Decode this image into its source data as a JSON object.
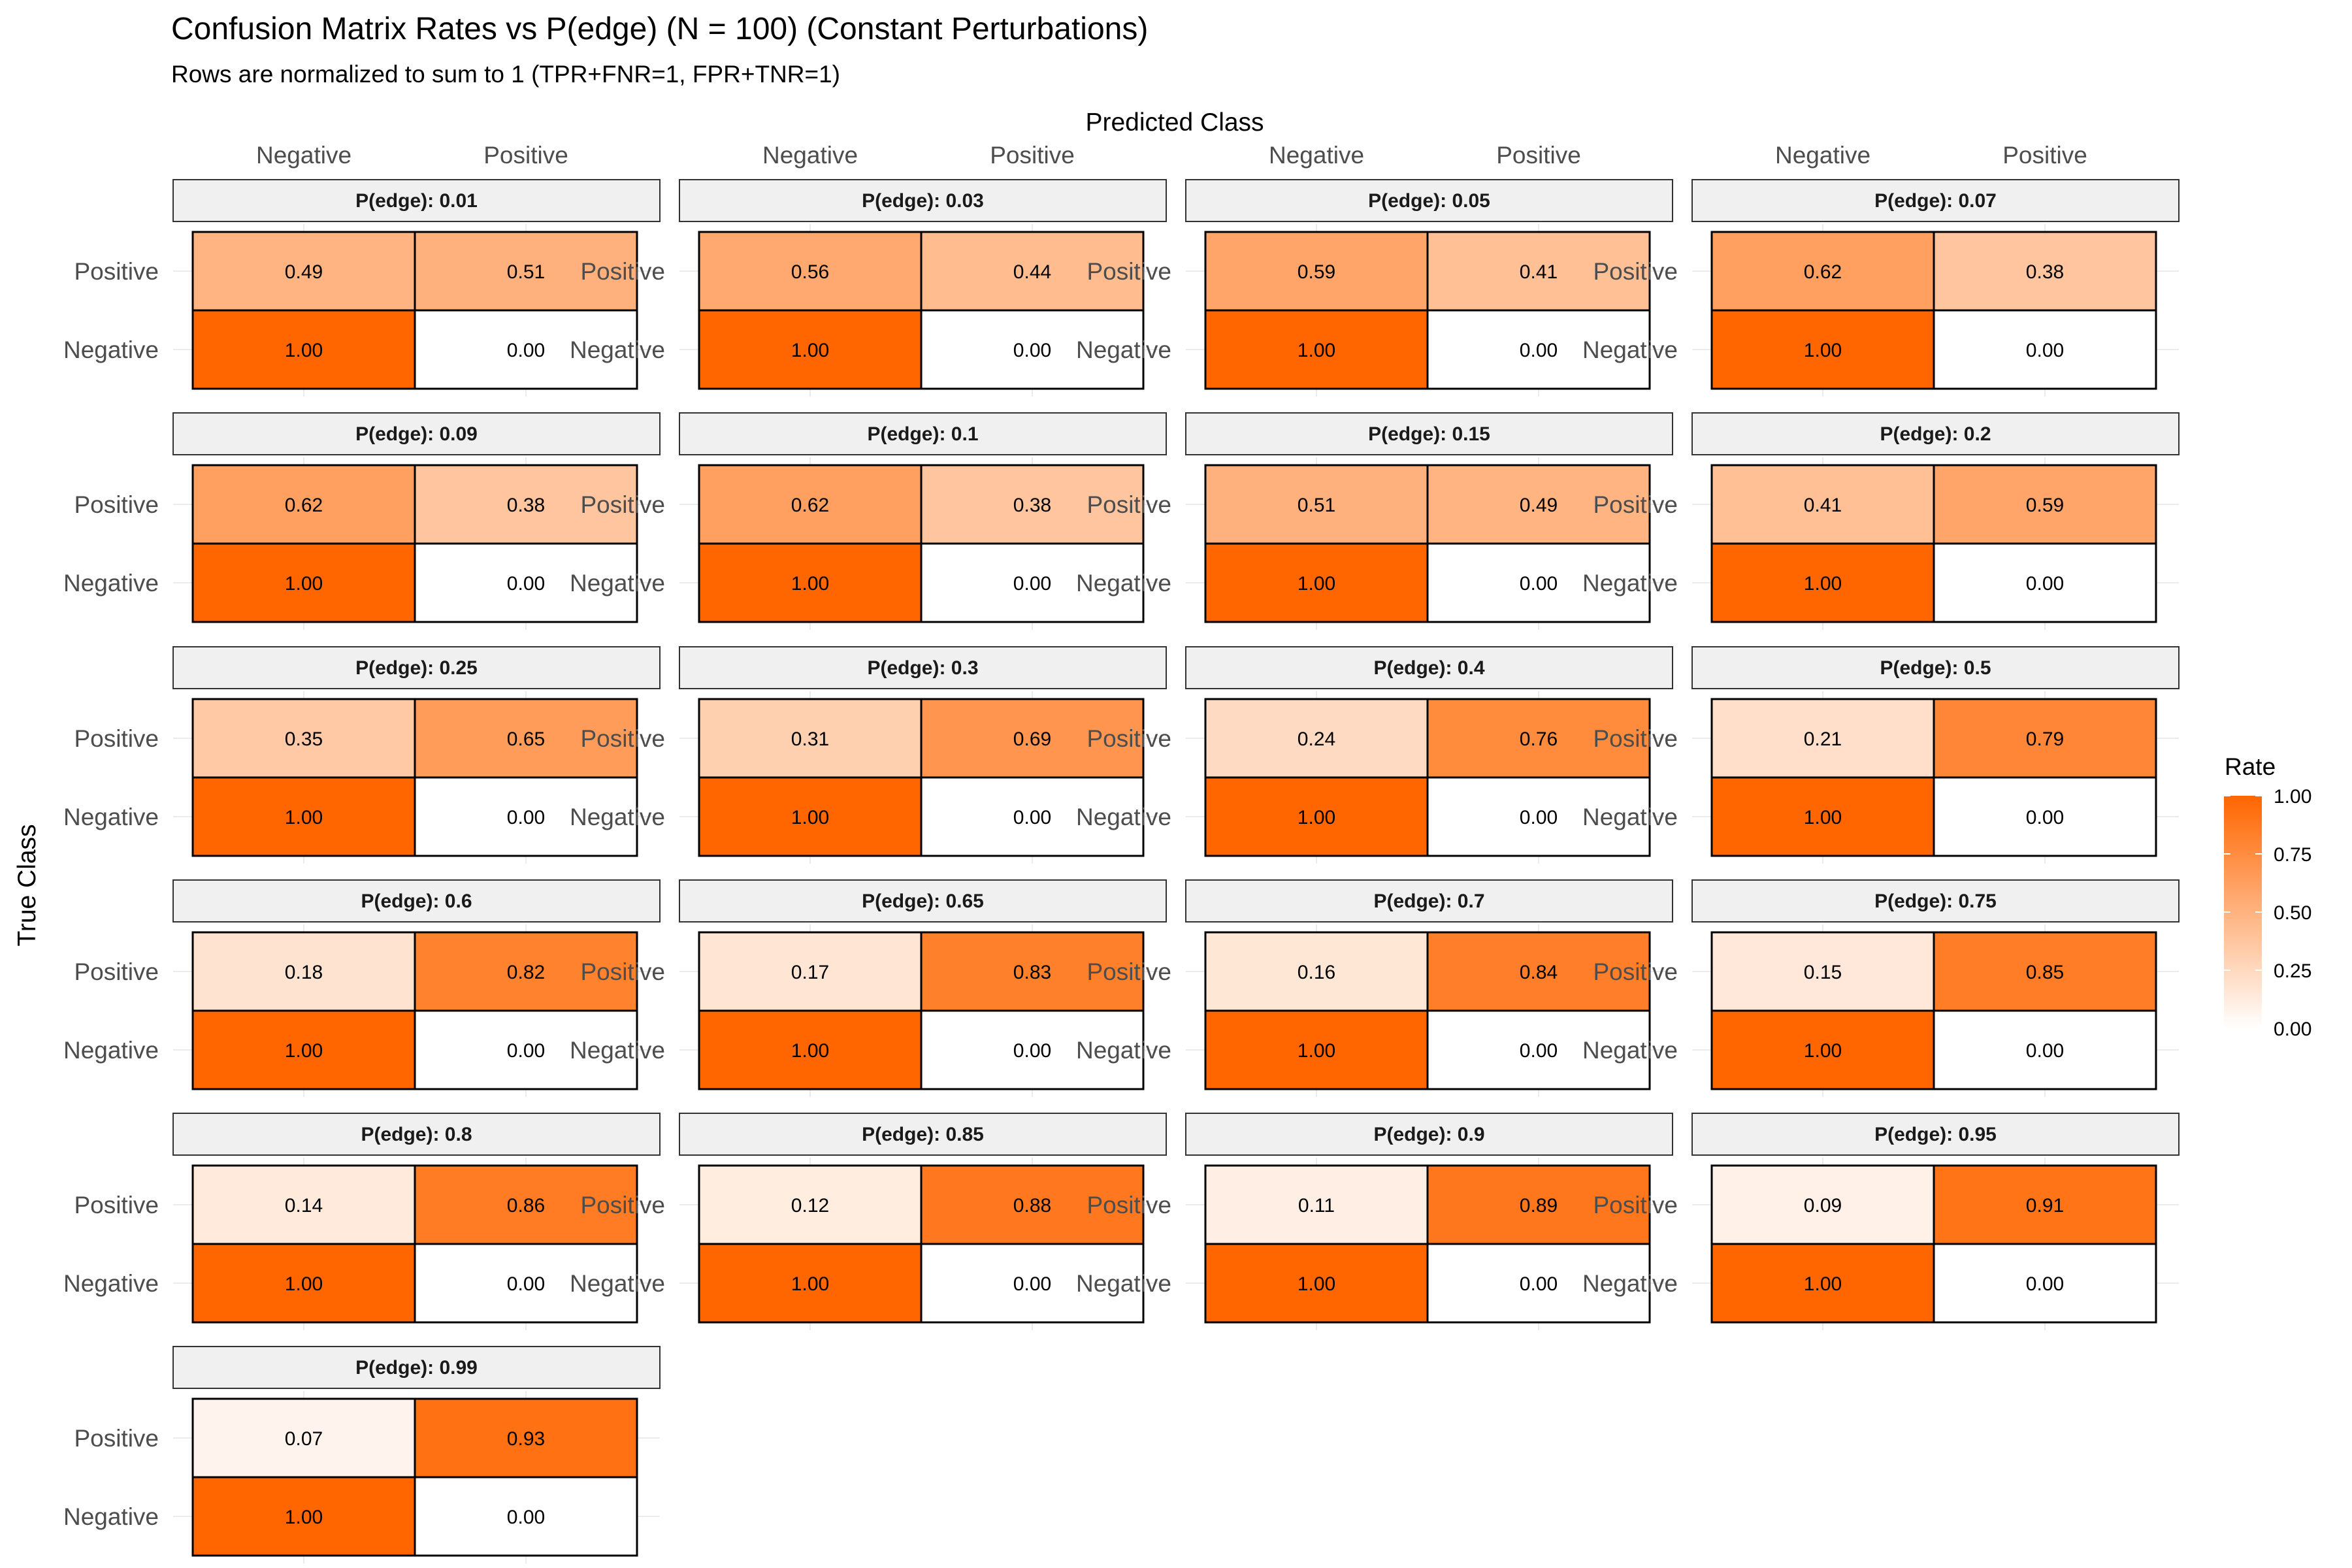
{
  "chart_data": {
    "type": "heatmap",
    "title": "Confusion Matrix Rates vs P(edge) (N = 100) (Constant Perturbations)",
    "subtitle": "Rows are normalized to sum to 1 (TPR+FNR=1, FPR+TNR=1)",
    "xlabel": "Predicted Class",
    "ylabel": "True Class",
    "x_categories": [
      "Negative",
      "Positive"
    ],
    "y_categories": [
      "Positive",
      "Negative"
    ],
    "facet_prefix": "P(edge): ",
    "legend": {
      "title": "Rate",
      "range": [
        0,
        1
      ],
      "ticks": [
        "0.00",
        "0.25",
        "0.50",
        "0.75",
        "1.00"
      ],
      "colors": {
        "low": "#ffffff",
        "high": "#ff6600"
      },
      "position": "right"
    },
    "grid": true,
    "panels": [
      {
        "p_edge": "0.01",
        "values": {
          "positive": [
            "0.49",
            "0.51"
          ],
          "negative": [
            "1.00",
            "0.00"
          ]
        }
      },
      {
        "p_edge": "0.03",
        "values": {
          "positive": [
            "0.56",
            "0.44"
          ],
          "negative": [
            "1.00",
            "0.00"
          ]
        }
      },
      {
        "p_edge": "0.05",
        "values": {
          "positive": [
            "0.59",
            "0.41"
          ],
          "negative": [
            "1.00",
            "0.00"
          ]
        }
      },
      {
        "p_edge": "0.07",
        "values": {
          "positive": [
            "0.62",
            "0.38"
          ],
          "negative": [
            "1.00",
            "0.00"
          ]
        }
      },
      {
        "p_edge": "0.09",
        "values": {
          "positive": [
            "0.62",
            "0.38"
          ],
          "negative": [
            "1.00",
            "0.00"
          ]
        }
      },
      {
        "p_edge": "0.1",
        "values": {
          "positive": [
            "0.62",
            "0.38"
          ],
          "negative": [
            "1.00",
            "0.00"
          ]
        }
      },
      {
        "p_edge": "0.15",
        "values": {
          "positive": [
            "0.51",
            "0.49"
          ],
          "negative": [
            "1.00",
            "0.00"
          ]
        }
      },
      {
        "p_edge": "0.2",
        "values": {
          "positive": [
            "0.41",
            "0.59"
          ],
          "negative": [
            "1.00",
            "0.00"
          ]
        }
      },
      {
        "p_edge": "0.25",
        "values": {
          "positive": [
            "0.35",
            "0.65"
          ],
          "negative": [
            "1.00",
            "0.00"
          ]
        }
      },
      {
        "p_edge": "0.3",
        "values": {
          "positive": [
            "0.31",
            "0.69"
          ],
          "negative": [
            "1.00",
            "0.00"
          ]
        }
      },
      {
        "p_edge": "0.4",
        "values": {
          "positive": [
            "0.24",
            "0.76"
          ],
          "negative": [
            "1.00",
            "0.00"
          ]
        }
      },
      {
        "p_edge": "0.5",
        "values": {
          "positive": [
            "0.21",
            "0.79"
          ],
          "negative": [
            "1.00",
            "0.00"
          ]
        }
      },
      {
        "p_edge": "0.6",
        "values": {
          "positive": [
            "0.18",
            "0.82"
          ],
          "negative": [
            "1.00",
            "0.00"
          ]
        }
      },
      {
        "p_edge": "0.65",
        "values": {
          "positive": [
            "0.17",
            "0.83"
          ],
          "negative": [
            "1.00",
            "0.00"
          ]
        }
      },
      {
        "p_edge": "0.7",
        "values": {
          "positive": [
            "0.16",
            "0.84"
          ],
          "negative": [
            "1.00",
            "0.00"
          ]
        }
      },
      {
        "p_edge": "0.75",
        "values": {
          "positive": [
            "0.15",
            "0.85"
          ],
          "negative": [
            "1.00",
            "0.00"
          ]
        }
      },
      {
        "p_edge": "0.8",
        "values": {
          "positive": [
            "0.14",
            "0.86"
          ],
          "negative": [
            "1.00",
            "0.00"
          ]
        }
      },
      {
        "p_edge": "0.85",
        "values": {
          "positive": [
            "0.12",
            "0.88"
          ],
          "negative": [
            "1.00",
            "0.00"
          ]
        }
      },
      {
        "p_edge": "0.9",
        "values": {
          "positive": [
            "0.11",
            "0.89"
          ],
          "negative": [
            "1.00",
            "0.00"
          ]
        }
      },
      {
        "p_edge": "0.95",
        "values": {
          "positive": [
            "0.09",
            "0.91"
          ],
          "negative": [
            "1.00",
            "0.00"
          ]
        }
      },
      {
        "p_edge": "0.99",
        "values": {
          "positive": [
            "0.07",
            "0.93"
          ],
          "negative": [
            "1.00",
            "0.00"
          ]
        }
      }
    ]
  }
}
